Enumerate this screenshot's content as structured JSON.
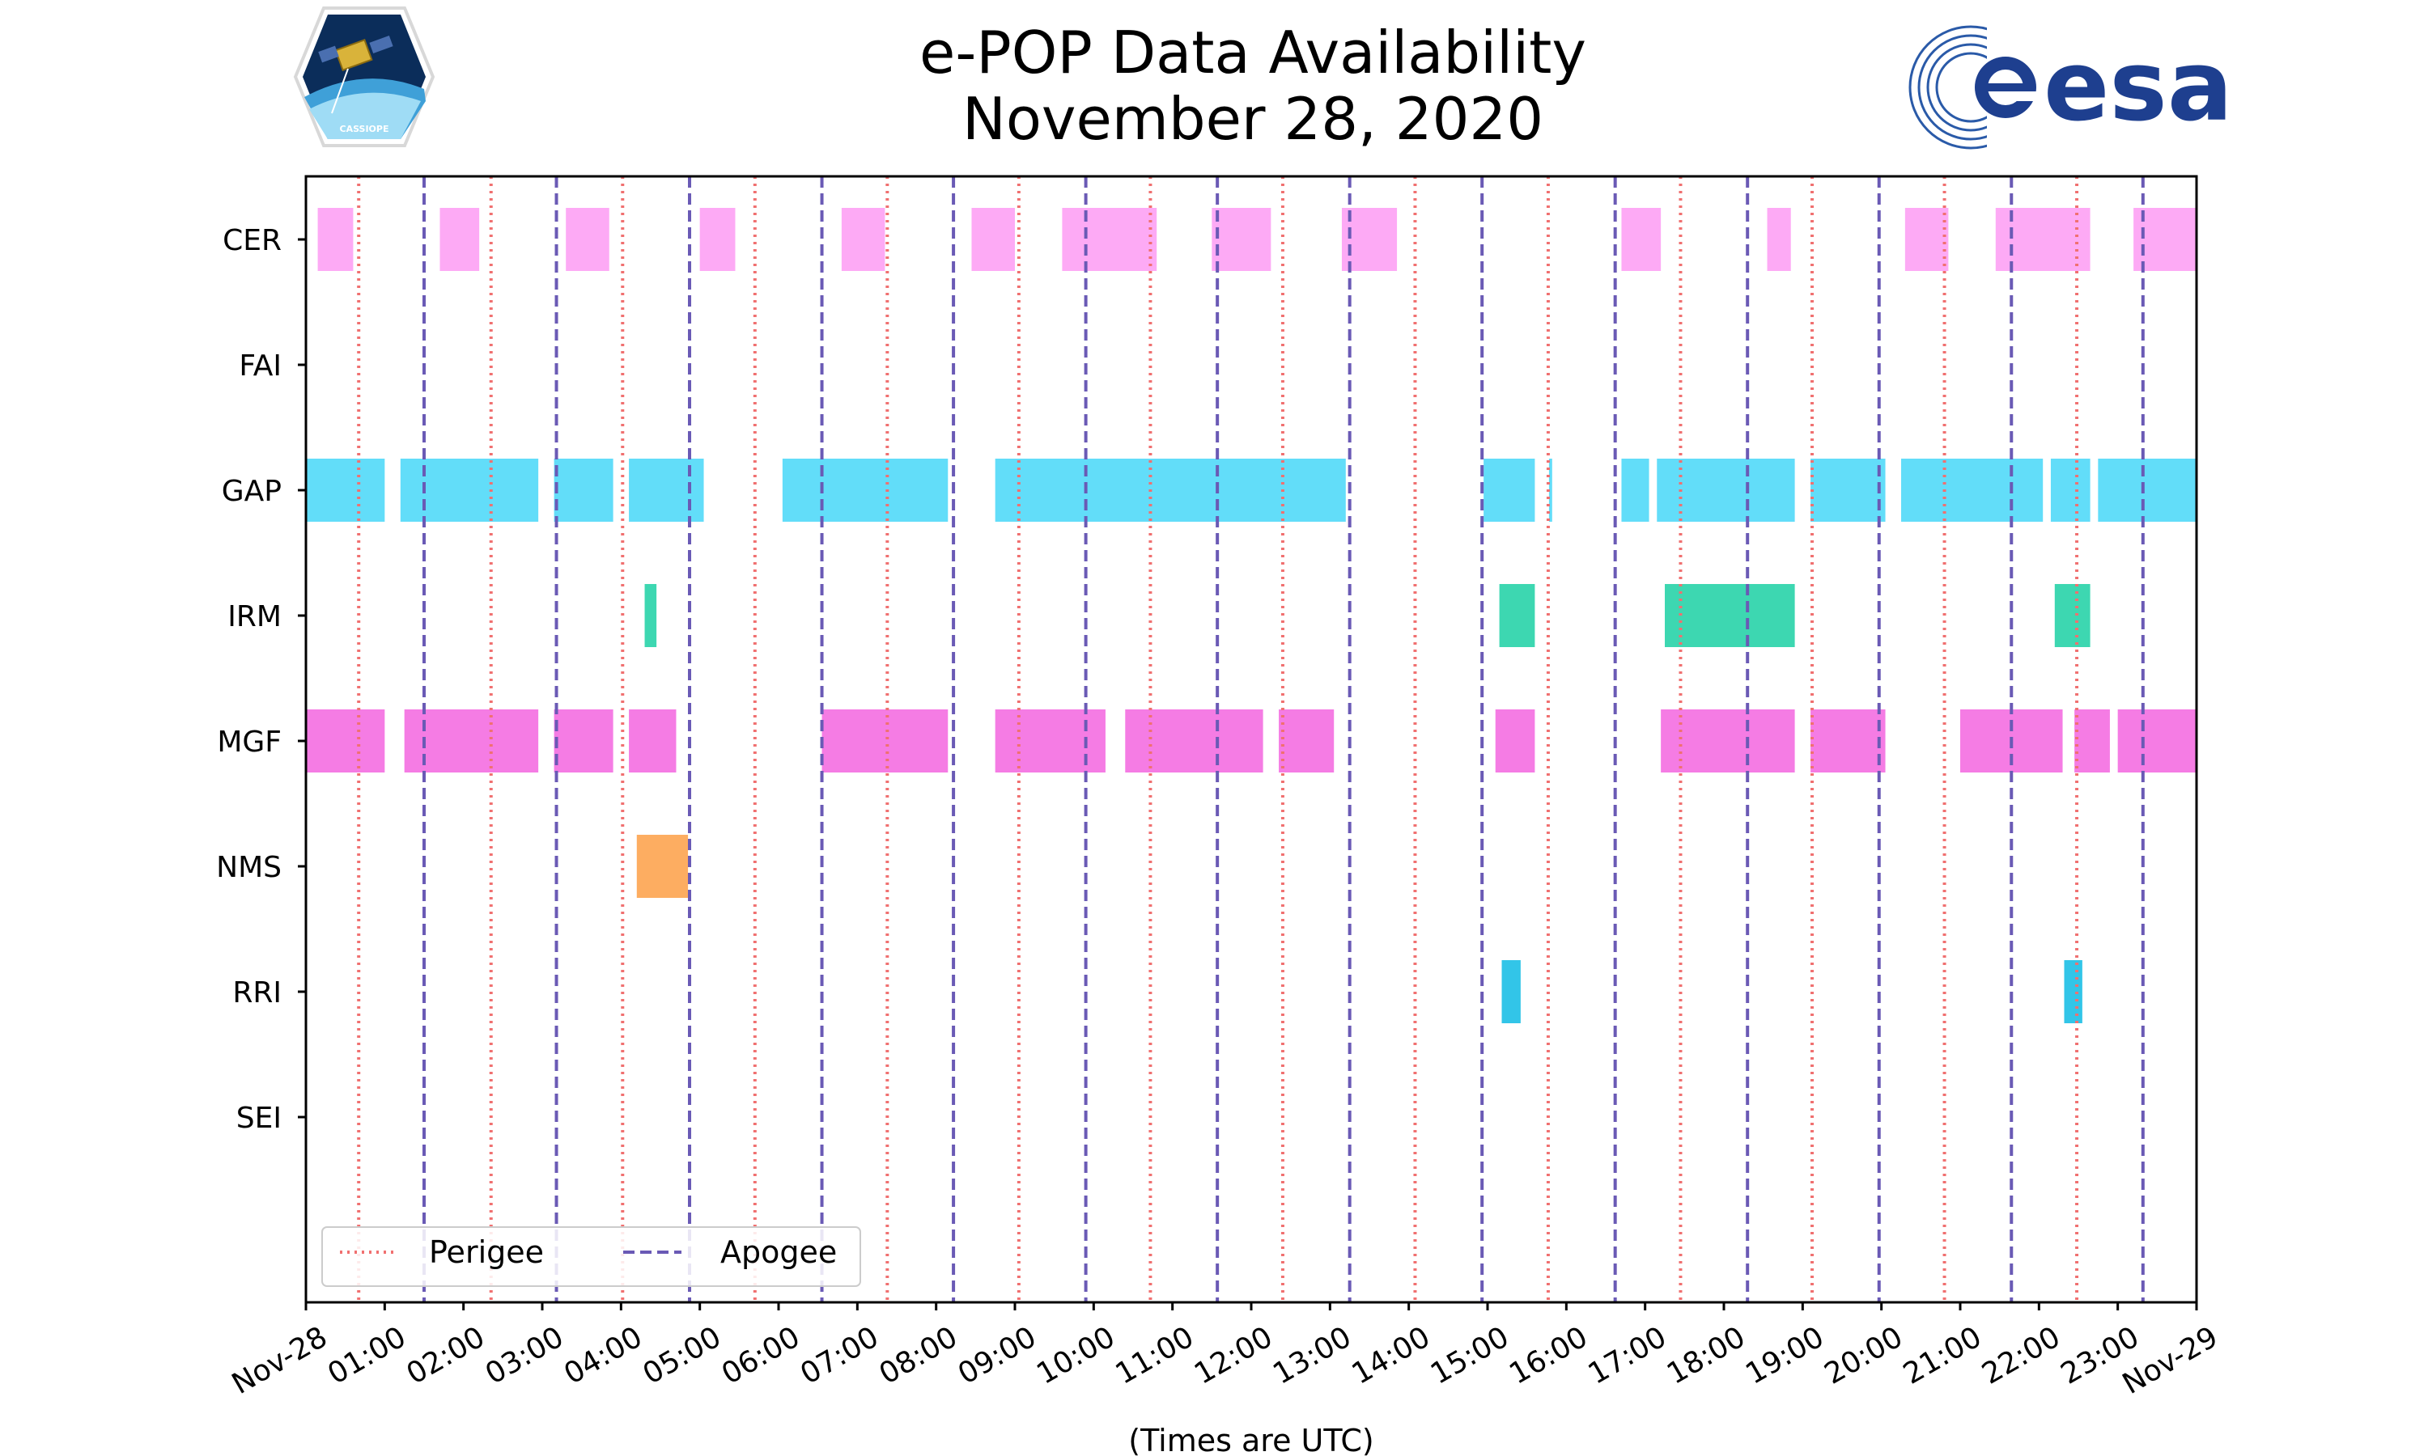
{
  "chart_data": {
    "type": "broken-barh",
    "title": [
      "e-POP Data Availability",
      "November 28, 2020"
    ],
    "xlabel": "(Times are UTC)",
    "xlim": [
      0,
      24
    ],
    "x_tick_values": [
      0,
      1,
      2,
      3,
      4,
      5,
      6,
      7,
      8,
      9,
      10,
      11,
      12,
      13,
      14,
      15,
      16,
      17,
      18,
      19,
      20,
      21,
      22,
      23,
      24
    ],
    "x_tick_labels": [
      "Nov-28",
      "01:00",
      "02:00",
      "03:00",
      "04:00",
      "05:00",
      "06:00",
      "07:00",
      "08:00",
      "09:00",
      "10:00",
      "11:00",
      "12:00",
      "13:00",
      "14:00",
      "15:00",
      "16:00",
      "17:00",
      "18:00",
      "19:00",
      "20:00",
      "21:00",
      "22:00",
      "23:00",
      "Nov-29"
    ],
    "categories": [
      "CER",
      "FAI",
      "GAP",
      "IRM",
      "MGF",
      "NMS",
      "RRI",
      "SEI"
    ],
    "series": [
      {
        "name": "CER",
        "color": "#fdaaf5",
        "intervals": [
          [
            0.15,
            0.6
          ],
          [
            1.7,
            2.2
          ],
          [
            3.3,
            3.85
          ],
          [
            5.0,
            5.45
          ],
          [
            6.8,
            7.35
          ],
          [
            8.45,
            9.0
          ],
          [
            9.6,
            10.8
          ],
          [
            11.5,
            12.25
          ],
          [
            13.15,
            13.85
          ],
          [
            16.7,
            17.2
          ],
          [
            18.55,
            18.85
          ],
          [
            20.3,
            20.85
          ],
          [
            21.45,
            22.65
          ],
          [
            23.2,
            24.0
          ]
        ]
      },
      {
        "name": "FAI",
        "color": "#c0c0c0",
        "intervals": []
      },
      {
        "name": "GAP",
        "color": "#62ddf9",
        "intervals": [
          [
            0.0,
            1.0
          ],
          [
            1.2,
            2.95
          ],
          [
            3.15,
            3.9
          ],
          [
            4.1,
            5.05
          ],
          [
            6.05,
            8.15
          ],
          [
            8.75,
            13.2
          ],
          [
            14.95,
            15.6
          ],
          [
            15.78,
            15.82
          ],
          [
            16.7,
            17.05
          ],
          [
            17.15,
            18.9
          ],
          [
            19.1,
            20.05
          ],
          [
            20.25,
            22.05
          ],
          [
            22.15,
            22.65
          ],
          [
            22.75,
            24.0
          ]
        ]
      },
      {
        "name": "IRM",
        "color": "#3dd7b1",
        "intervals": [
          [
            4.3,
            4.45
          ],
          [
            15.15,
            15.6
          ],
          [
            17.25,
            18.9
          ],
          [
            22.2,
            22.65
          ]
        ]
      },
      {
        "name": "MGF",
        "color": "#f57ce4",
        "intervals": [
          [
            0.0,
            1.0
          ],
          [
            1.25,
            2.95
          ],
          [
            3.15,
            3.9
          ],
          [
            4.1,
            4.7
          ],
          [
            6.55,
            8.15
          ],
          [
            8.75,
            10.15
          ],
          [
            10.4,
            12.15
          ],
          [
            12.35,
            13.05
          ],
          [
            15.1,
            15.6
          ],
          [
            17.2,
            18.9
          ],
          [
            19.1,
            20.05
          ],
          [
            21.0,
            22.3
          ],
          [
            22.45,
            22.9
          ],
          [
            23.0,
            24.0
          ]
        ]
      },
      {
        "name": "NMS",
        "color": "#fdad61",
        "intervals": [
          [
            4.2,
            4.85
          ]
        ]
      },
      {
        "name": "RRI",
        "color": "#32c5e8",
        "intervals": [
          [
            15.18,
            15.42
          ],
          [
            22.32,
            22.55
          ]
        ]
      },
      {
        "name": "SEI",
        "color": "#c0c0c0",
        "intervals": []
      }
    ],
    "perigee_times": [
      0.67,
      2.35,
      4.02,
      5.7,
      7.38,
      9.05,
      10.72,
      12.4,
      14.08,
      15.77,
      17.45,
      19.12,
      20.8,
      22.48
    ],
    "apogee_times": [
      1.5,
      3.18,
      4.87,
      6.55,
      8.22,
      9.9,
      11.57,
      13.25,
      14.93,
      16.62,
      18.3,
      19.97,
      21.65,
      23.32
    ],
    "perigee_color": "#f07070",
    "apogee_color": "#6a5ab5",
    "legend": {
      "location": "lower-left",
      "entries": [
        {
          "label": "Perigee",
          "style": "dotted"
        },
        {
          "label": "Apogee",
          "style": "dashed"
        }
      ]
    }
  },
  "logos": {
    "left": "CASSIOPE",
    "right": "esa"
  }
}
